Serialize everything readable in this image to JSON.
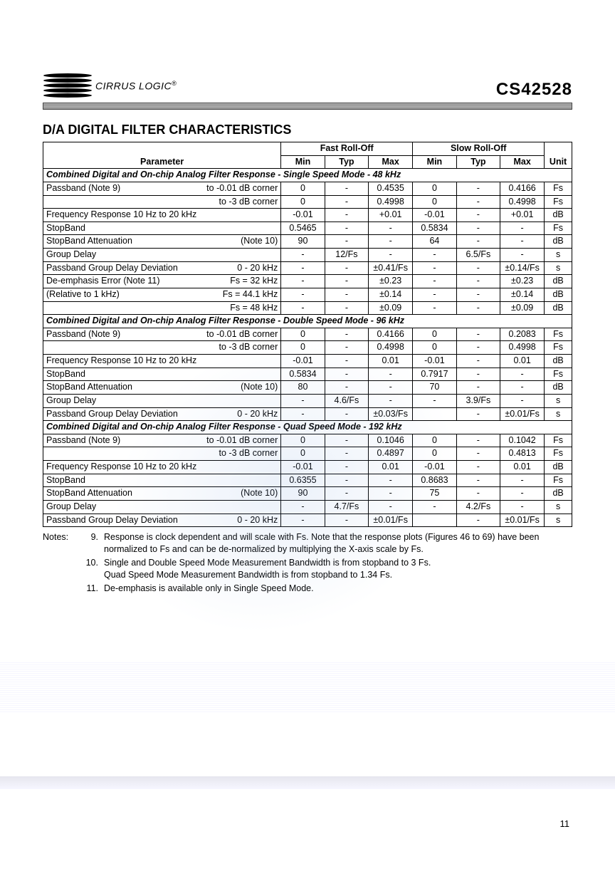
{
  "brand": "CIRRUS LOGIC",
  "brand_reg": "®",
  "product": "CS42528",
  "section_title": "D/A DIGITAL FILTER CHARACTERISTICS",
  "headers": {
    "parameter": "Parameter",
    "fast": "Fast Roll-Off",
    "slow": "Slow Roll-Off",
    "min": "Min",
    "typ": "Typ",
    "max": "Max",
    "unit": "Unit"
  },
  "sections": [
    {
      "title": "Combined Digital and On-chip Analog Filter Response - Single Speed Mode - 48 kHz",
      "rows": [
        {
          "pl": "Passband (Note 9)",
          "pr": "to -0.01 dB corner",
          "f": [
            "0",
            "-",
            "0.4535"
          ],
          "s": [
            "0",
            "-",
            "0.4166"
          ],
          "u": "Fs"
        },
        {
          "pl": "",
          "pr": "to -3 dB corner",
          "f": [
            "0",
            "-",
            "0.4998"
          ],
          "s": [
            "0",
            "-",
            "0.4998"
          ],
          "u": "Fs"
        },
        {
          "pl": "Frequency Response 10 Hz to 20 kHz",
          "pr": "",
          "f": [
            "-0.01",
            "-",
            "+0.01"
          ],
          "s": [
            "-0.01",
            "-",
            "+0.01"
          ],
          "u": "dB"
        },
        {
          "pl": "StopBand",
          "pr": "",
          "f": [
            "0.5465",
            "-",
            "-"
          ],
          "s": [
            "0.5834",
            "-",
            "-"
          ],
          "u": "Fs"
        },
        {
          "pl": "StopBand Attenuation",
          "pr": "(Note 10)",
          "f": [
            "90",
            "-",
            "-"
          ],
          "s": [
            "64",
            "-",
            "-"
          ],
          "u": "dB"
        },
        {
          "pl": "Group Delay",
          "pr": "",
          "f": [
            "-",
            "12/Fs",
            "-"
          ],
          "s": [
            "-",
            "6.5/Fs",
            "-"
          ],
          "u": "s"
        },
        {
          "pl": "Passband Group Delay Deviation",
          "pr": "0 - 20 kHz",
          "f": [
            "-",
            "-",
            "±0.41/Fs"
          ],
          "s": [
            "-",
            "-",
            "±0.14/Fs"
          ],
          "u": "s"
        },
        {
          "pl": "De-emphasis Error (Note 11)",
          "pr": "Fs = 32 kHz",
          "f": [
            "-",
            "-",
            "±0.23"
          ],
          "s": [
            "-",
            "-",
            "±0.23"
          ],
          "u": "dB"
        },
        {
          "pl": "(Relative to 1 kHz)",
          "pr": "Fs = 44.1 kHz",
          "f": [
            "-",
            "-",
            "±0.14"
          ],
          "s": [
            "-",
            "-",
            "±0.14"
          ],
          "u": "dB"
        },
        {
          "pl": "",
          "pr": "Fs = 48 kHz",
          "f": [
            "-",
            "-",
            "±0.09"
          ],
          "s": [
            "-",
            "-",
            "±0.09"
          ],
          "u": "dB"
        }
      ]
    },
    {
      "title": "Combined Digital and On-chip Analog Filter Response - Double Speed Mode - 96 kHz",
      "rows": [
        {
          "pl": "Passband (Note 9)",
          "pr": "to -0.01 dB corner",
          "f": [
            "0",
            "-",
            "0.4166"
          ],
          "s": [
            "0",
            "-",
            "0.2083"
          ],
          "u": "Fs"
        },
        {
          "pl": "",
          "pr": "to -3 dB corner",
          "f": [
            "0",
            "-",
            "0.4998"
          ],
          "s": [
            "0",
            "-",
            "0.4998"
          ],
          "u": "Fs"
        },
        {
          "pl": "Frequency Response 10 Hz to 20 kHz",
          "pr": "",
          "f": [
            "-0.01",
            "-",
            "0.01"
          ],
          "s": [
            "-0.01",
            "-",
            "0.01"
          ],
          "u": "dB"
        },
        {
          "pl": "StopBand",
          "pr": "",
          "f": [
            "0.5834",
            "-",
            "-"
          ],
          "s": [
            "0.7917",
            "-",
            "-"
          ],
          "u": "Fs"
        },
        {
          "pl": "StopBand Attenuation",
          "pr": "(Note 10)",
          "f": [
            "80",
            "-",
            "-"
          ],
          "s": [
            "70",
            "-",
            "-"
          ],
          "u": "dB"
        },
        {
          "pl": "Group Delay",
          "pr": "",
          "f": [
            "-",
            "4.6/Fs",
            "-"
          ],
          "s": [
            "-",
            "3.9/Fs",
            "-"
          ],
          "u": "s"
        },
        {
          "pl": "Passband Group Delay Deviation",
          "pr": "0 - 20 kHz",
          "f": [
            "-",
            "-",
            "±0.03/Fs"
          ],
          "s": [
            "",
            "-",
            "±0.01/Fs"
          ],
          "u": "s"
        }
      ]
    },
    {
      "title": "Combined Digital and On-chip Analog Filter Response - Quad Speed Mode - 192 kHz",
      "rows": [
        {
          "pl": "Passband (Note 9)",
          "pr": "to -0.01 dB corner",
          "f": [
            "0",
            "-",
            "0.1046"
          ],
          "s": [
            "0",
            "-",
            "0.1042"
          ],
          "u": "Fs"
        },
        {
          "pl": "",
          "pr": "to -3 dB corner",
          "f": [
            "0",
            "-",
            "0.4897"
          ],
          "s": [
            "0",
            "-",
            "0.4813"
          ],
          "u": "Fs"
        },
        {
          "pl": "Frequency Response 10 Hz to 20 kHz",
          "pr": "",
          "f": [
            "-0.01",
            "-",
            "0.01"
          ],
          "s": [
            "-0.01",
            "-",
            "0.01"
          ],
          "u": "dB"
        },
        {
          "pl": "StopBand",
          "pr": "",
          "f": [
            "0.6355",
            "-",
            "-"
          ],
          "s": [
            "0.8683",
            "-",
            "-"
          ],
          "u": "Fs"
        },
        {
          "pl": "StopBand Attenuation",
          "pr": "(Note 10)",
          "f": [
            "90",
            "-",
            "-"
          ],
          "s": [
            "75",
            "-",
            "-"
          ],
          "u": "dB"
        },
        {
          "pl": "Group Delay",
          "pr": "",
          "f": [
            "-",
            "4.7/Fs",
            "-"
          ],
          "s": [
            "-",
            "4.2/Fs",
            "-"
          ],
          "u": "s"
        },
        {
          "pl": "Passband Group Delay Deviation",
          "pr": "0 - 20 kHz",
          "f": [
            "-",
            "-",
            "±0.01/Fs"
          ],
          "s": [
            "",
            "-",
            "±0.01/Fs"
          ],
          "u": "s"
        }
      ]
    }
  ],
  "notes_label": "Notes:",
  "notes": [
    {
      "n": "9.",
      "t": "Response is clock dependent and will scale with Fs. Note that the response plots (Figures 46 to 69) have been normalized to Fs and can be de-normalized by multiplying the X-axis scale by Fs."
    },
    {
      "n": "10.",
      "t": "Single and Double Speed Mode Measurement Bandwidth is from stopband to 3 Fs.\nQuad Speed Mode Measurement Bandwidth is from stopband to 1.34 Fs."
    },
    {
      "n": "11.",
      "t": "De-emphasis is available only in Single Speed Mode."
    }
  ],
  "page_number": "11",
  "style": {
    "font_family": "Arial",
    "title_fontsize": 18,
    "body_fontsize": 12.5,
    "border_color": "#000000",
    "background": "#ffffff",
    "watermark_color": "rgba(120,160,220,0.15)"
  }
}
